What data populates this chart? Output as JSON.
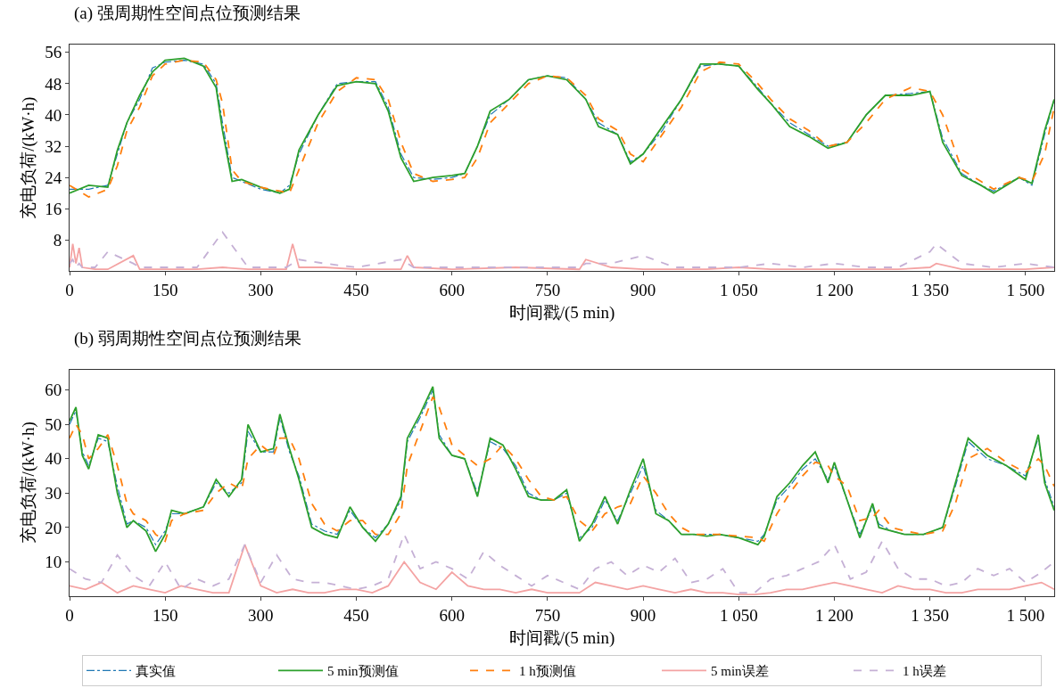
{
  "chart_data": [
    {
      "type": "line",
      "title": "(a) 强周期性空间点位预测结果",
      "xlabel": "时间戳/(5 min)",
      "ylabel": "充电负荷/(kW·h)",
      "legend": "bottom",
      "marker": "none",
      "xlim": [
        0,
        1545
      ],
      "xticks": [
        0,
        150,
        300,
        450,
        600,
        750,
        900,
        {
          "value": 1050,
          "label": "1 050"
        },
        {
          "value": 1200,
          "label": "1 200"
        },
        {
          "value": 1350,
          "label": "1 350"
        },
        {
          "value": 1500,
          "label": "1 500"
        }
      ],
      "ylim": [
        0,
        58
      ],
      "yticks": [
        8,
        16,
        24,
        32,
        40,
        48,
        56
      ],
      "x": [
        0,
        30,
        60,
        75,
        90,
        110,
        130,
        150,
        180,
        210,
        230,
        240,
        255,
        270,
        300,
        330,
        345,
        360,
        390,
        420,
        450,
        480,
        500,
        520,
        540,
        570,
        600,
        620,
        640,
        660,
        690,
        720,
        750,
        780,
        810,
        830,
        860,
        880,
        900,
        930,
        960,
        990,
        1020,
        1050,
        1080,
        1100,
        1130,
        1160,
        1190,
        1220,
        1250,
        1280,
        1320,
        1350,
        1370,
        1400,
        1430,
        1450,
        1490,
        1510,
        1530,
        1545
      ],
      "series": [
        {
          "name": "真实值",
          "color": "#1f77b4",
          "line_style": "dashdot",
          "values": [
            21,
            21,
            22,
            30,
            38,
            44,
            52,
            53.5,
            54,
            53,
            48,
            38,
            24,
            23,
            21,
            20,
            22,
            30,
            40,
            48,
            48.5,
            48.5,
            42,
            30,
            24,
            23.5,
            24,
            25,
            32,
            40,
            44,
            49,
            50,
            49.5,
            44,
            38,
            35,
            28,
            30,
            36,
            44,
            52.5,
            53,
            52.5,
            47,
            43,
            38,
            35,
            32,
            33,
            40,
            45,
            45.5,
            46,
            34,
            25,
            22,
            20.5,
            24,
            22,
            35,
            44
          ]
        },
        {
          "name": "5 min预测值",
          "color": "#2ca02c",
          "line_style": "solid",
          "values": [
            20,
            22,
            21.5,
            31,
            38,
            45,
            51,
            54,
            54.5,
            52.5,
            47,
            36,
            23,
            23.5,
            21.5,
            20,
            21,
            31,
            40,
            47.5,
            48.5,
            48,
            41,
            29,
            23,
            24,
            24.5,
            25,
            32,
            41,
            44,
            49,
            50,
            49,
            44,
            37,
            35,
            27.5,
            30,
            37,
            44,
            53,
            53,
            52.5,
            46.5,
            43,
            37,
            34.5,
            31.5,
            33,
            40,
            45,
            45,
            46,
            33,
            24.5,
            22,
            20,
            24,
            22.5,
            36,
            44
          ]
        },
        {
          "name": "1 h预测值",
          "color": "#ff7f0e",
          "line_style": "dashed",
          "values": [
            22,
            19,
            21,
            27,
            36,
            42,
            50,
            53,
            54,
            53.5,
            49,
            43,
            26,
            23,
            21.5,
            20.5,
            20,
            26,
            38,
            46,
            49.5,
            49,
            44,
            33,
            25,
            23,
            23.5,
            24,
            29,
            38,
            43,
            48,
            50,
            49.5,
            45,
            39,
            36,
            30,
            28,
            35,
            42,
            51,
            53.5,
            53,
            48,
            44,
            39,
            36,
            32,
            33,
            38,
            44,
            47,
            46,
            40,
            26,
            23,
            21,
            24,
            23,
            30,
            42
          ]
        },
        {
          "name": "5 min误差",
          "color": "#f4a3a3",
          "line_style": "solid",
          "x": [
            0,
            5,
            10,
            15,
            20,
            40,
            60,
            100,
            110,
            150,
            200,
            240,
            280,
            340,
            350,
            360,
            400,
            450,
            520,
            530,
            540,
            600,
            700,
            800,
            810,
            850,
            900,
            950,
            1000,
            1050,
            1100,
            1150,
            1200,
            1250,
            1300,
            1350,
            1360,
            1400,
            1450,
            1500,
            1545
          ],
          "values": [
            1,
            7,
            2,
            6,
            1,
            0.5,
            0.5,
            4,
            0.5,
            0.5,
            0.5,
            1,
            0.5,
            0.5,
            7,
            1,
            1,
            0.5,
            0.5,
            4,
            1,
            0.5,
            1,
            0.5,
            3,
            1,
            0.5,
            0.5,
            0.5,
            1,
            0.5,
            0.5,
            0.5,
            0.5,
            0.5,
            1,
            2,
            0.5,
            0.5,
            0.5,
            1
          ]
        },
        {
          "name": "1 h误差",
          "color": "#c5b0d5",
          "line_style": "dashed",
          "x": [
            0,
            5,
            10,
            15,
            20,
            40,
            60,
            100,
            110,
            150,
            200,
            240,
            280,
            340,
            350,
            360,
            400,
            450,
            520,
            530,
            540,
            600,
            700,
            800,
            810,
            850,
            900,
            950,
            1000,
            1050,
            1100,
            1150,
            1200,
            1250,
            1300,
            1350,
            1360,
            1400,
            1450,
            1500,
            1545
          ],
          "values": [
            2,
            3,
            1,
            2,
            1,
            1,
            5,
            2,
            1,
            1,
            1,
            10,
            1,
            1,
            2,
            3,
            2,
            1,
            3,
            2,
            1,
            1,
            1,
            1,
            2,
            2,
            4,
            1,
            1,
            1,
            2,
            1,
            2,
            1,
            1,
            5,
            7,
            2,
            1,
            2,
            1
          ]
        }
      ]
    },
    {
      "type": "line",
      "title": "(b) 弱周期性空间点位预测结果",
      "xlabel": "时间戳/(5 min)",
      "ylabel": "充电负荷/(kW·h)",
      "marker": "none",
      "xlim": [
        0,
        1545
      ],
      "xticks": [
        0,
        150,
        300,
        450,
        600,
        750,
        900,
        {
          "value": 1050,
          "label": "1 050"
        },
        {
          "value": 1200,
          "label": "1 200"
        },
        {
          "value": 1350,
          "label": "1 350"
        },
        {
          "value": 1500,
          "label": "1 500"
        }
      ],
      "ylim": [
        0,
        66
      ],
      "yticks": [
        10,
        20,
        30,
        40,
        50,
        60
      ],
      "x": [
        0,
        10,
        20,
        30,
        45,
        60,
        75,
        90,
        100,
        120,
        135,
        150,
        160,
        180,
        210,
        230,
        250,
        270,
        280,
        300,
        320,
        330,
        345,
        360,
        380,
        400,
        420,
        440,
        460,
        480,
        500,
        520,
        530,
        550,
        570,
        580,
        600,
        620,
        640,
        660,
        680,
        700,
        720,
        740,
        760,
        780,
        800,
        820,
        840,
        860,
        880,
        900,
        920,
        940,
        960,
        980,
        1000,
        1020,
        1050,
        1080,
        1090,
        1110,
        1130,
        1150,
        1170,
        1190,
        1200,
        1220,
        1240,
        1260,
        1270,
        1290,
        1310,
        1340,
        1370,
        1390,
        1410,
        1440,
        1470,
        1500,
        1520,
        1530,
        1545
      ],
      "series": [
        {
          "color": "#1f77b4",
          "line_style": "dashdot",
          "values": [
            50,
            54,
            42,
            38,
            46,
            45,
            32,
            21,
            22,
            20,
            15,
            19,
            24,
            24,
            26,
            33,
            30,
            33,
            48,
            42,
            42,
            52,
            42,
            35,
            21,
            19,
            18,
            25,
            20,
            17,
            21,
            28,
            45,
            52,
            60,
            47,
            41,
            40,
            30,
            45,
            43,
            38,
            30,
            28,
            28,
            30,
            17,
            20,
            28,
            22,
            30,
            38,
            25,
            22,
            18,
            18,
            18,
            18,
            17,
            16,
            18,
            28,
            32,
            37,
            40,
            34,
            38,
            28,
            18,
            26,
            21,
            19,
            18,
            18,
            20,
            32,
            45,
            40,
            38,
            35,
            46,
            34,
            26
          ]
        },
        {
          "color": "#2ca02c",
          "line_style": "solid",
          "values": [
            51,
            55,
            41,
            37,
            47,
            46,
            30,
            20,
            22,
            19,
            13,
            18,
            25,
            24,
            26,
            34,
            29,
            34,
            50,
            42,
            43,
            53,
            43,
            34,
            20,
            18,
            17,
            26,
            20,
            16,
            21,
            29,
            46,
            53,
            61,
            46,
            41,
            40,
            29,
            46,
            44,
            37,
            29,
            28,
            28,
            31,
            16,
            21,
            29,
            21,
            31,
            40,
            24,
            22,
            18,
            18,
            17.5,
            18,
            17,
            15,
            17.5,
            29,
            33,
            38,
            42,
            33,
            39,
            28,
            17,
            27,
            20,
            19,
            18,
            18,
            20,
            33,
            46,
            41,
            38,
            34,
            47,
            33,
            25
          ]
        },
        {
          "color": "#ff7f0e",
          "line_style": "dashed",
          "values": [
            46,
            50,
            47,
            40,
            43,
            47,
            38,
            27,
            24,
            22,
            18,
            16,
            22,
            24,
            25,
            30,
            33,
            31,
            40,
            44,
            41,
            46,
            46,
            40,
            27,
            21,
            19,
            22,
            22,
            18,
            18,
            24,
            38,
            48,
            58,
            55,
            44,
            41,
            38,
            40,
            44,
            40,
            34,
            29,
            28,
            29,
            22,
            19,
            24,
            26,
            27,
            35,
            30,
            24,
            20,
            18,
            18,
            18,
            17.5,
            17,
            16,
            24,
            30,
            35,
            39,
            38,
            35,
            32,
            22,
            23,
            25,
            20,
            19,
            18,
            19,
            27,
            40,
            43,
            39,
            36,
            40,
            38,
            32
          ]
        },
        {
          "color": "#f4a3a3",
          "line_style": "solid",
          "x": [
            0,
            25,
            50,
            75,
            100,
            125,
            150,
            175,
            200,
            225,
            250,
            275,
            300,
            325,
            350,
            375,
            400,
            425,
            450,
            475,
            500,
            525,
            550,
            575,
            600,
            625,
            650,
            675,
            700,
            725,
            750,
            775,
            800,
            825,
            850,
            875,
            900,
            925,
            950,
            975,
            1000,
            1025,
            1050,
            1075,
            1100,
            1125,
            1150,
            1175,
            1200,
            1225,
            1250,
            1275,
            1300,
            1325,
            1350,
            1375,
            1400,
            1425,
            1450,
            1475,
            1500,
            1525,
            1545
          ],
          "values": [
            3,
            2,
            4,
            1,
            3,
            2,
            1,
            3,
            2,
            1,
            1,
            15,
            3,
            1,
            2,
            1,
            1,
            2,
            2,
            1,
            3,
            10,
            4,
            2,
            7,
            3,
            2,
            2,
            1,
            2,
            1,
            1,
            1,
            4,
            3,
            2,
            3,
            2,
            1,
            2,
            1,
            1,
            0.5,
            0.5,
            1,
            2,
            2,
            3,
            4,
            3,
            2,
            1,
            3,
            2,
            2,
            1,
            1,
            2,
            2,
            2,
            3,
            4,
            2
          ]
        },
        {
          "color": "#c5b0d5",
          "line_style": "dashed",
          "x": [
            0,
            25,
            50,
            75,
            100,
            125,
            150,
            175,
            200,
            225,
            250,
            275,
            300,
            325,
            350,
            375,
            400,
            425,
            450,
            475,
            500,
            525,
            550,
            575,
            600,
            625,
            650,
            675,
            700,
            725,
            750,
            775,
            800,
            825,
            850,
            875,
            900,
            925,
            950,
            975,
            1000,
            1025,
            1050,
            1075,
            1100,
            1125,
            1150,
            1175,
            1200,
            1225,
            1250,
            1275,
            1300,
            1325,
            1350,
            1375,
            1400,
            1425,
            1450,
            1475,
            1500,
            1525,
            1545
          ],
          "values": [
            8,
            5,
            4,
            12,
            6,
            3,
            10,
            2,
            5,
            3,
            5,
            15,
            4,
            12,
            5,
            4,
            4,
            3,
            2,
            3,
            5,
            18,
            8,
            10,
            8,
            5,
            13,
            9,
            6,
            3,
            6,
            4,
            2,
            8,
            10,
            6,
            9,
            7,
            11,
            4,
            5,
            8,
            1,
            1,
            5,
            6,
            8,
            10,
            15,
            5,
            7,
            16,
            8,
            5,
            5,
            3,
            4,
            8,
            6,
            8,
            4,
            7,
            10
          ]
        }
      ]
    }
  ]
}
